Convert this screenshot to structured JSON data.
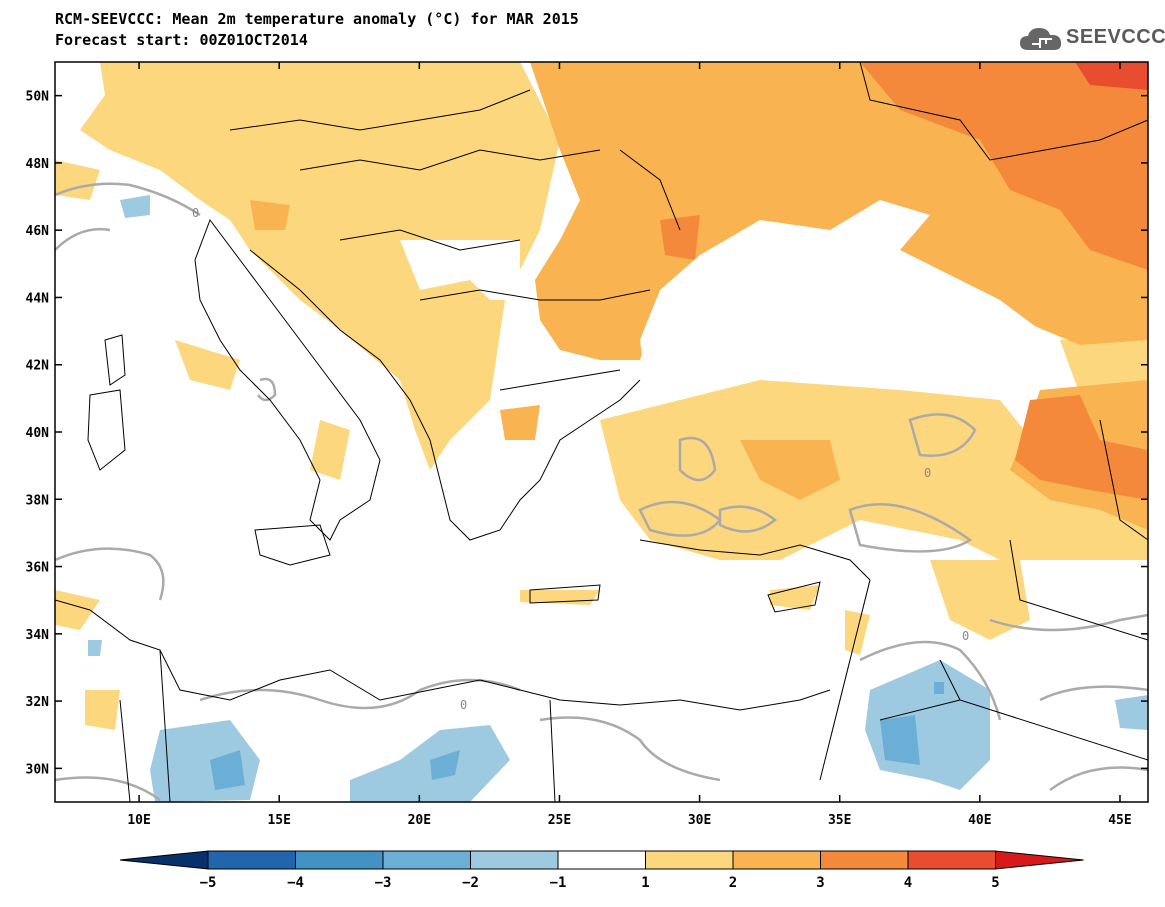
{
  "header": {
    "title_line1": "RCM-SEEVCCC: Mean 2m temperature anomaly (°C) for MAR 2015",
    "title_line2": "Forecast start: 00Z01OCT2014"
  },
  "logo": {
    "text": "SEEVCCC",
    "icon": "cloud-icon"
  },
  "map": {
    "lon_range": [
      7,
      46
    ],
    "lat_range": [
      29,
      51
    ],
    "lon_ticks": [
      10,
      15,
      20,
      25,
      30,
      35,
      40,
      45
    ],
    "lon_tick_labels": [
      "10E",
      "15E",
      "20E",
      "25E",
      "30E",
      "35E",
      "40E",
      "45E"
    ],
    "lat_ticks": [
      30,
      32,
      34,
      36,
      38,
      40,
      42,
      44,
      46,
      48,
      50
    ],
    "lat_tick_labels": [
      "30N",
      "32N",
      "34N",
      "36N",
      "38N",
      "40N",
      "42N",
      "44N",
      "46N",
      "48N",
      "50N"
    ],
    "zero_contour_label": "0",
    "colors": {
      "warm_1_2": "#fdd77e",
      "warm_2_3": "#f9b451",
      "warm_3_4": "#f4893c",
      "warm_4_5": "#e94d2f",
      "warm_gt5": "#d7191c",
      "cold_1_2": "#9ecae1",
      "cold_2_3": "#6baed6",
      "cold_3_4": "#4292c6",
      "cold_4_5": "#2166ac",
      "cold_lt5": "#08519c",
      "neutral": "#ffffff",
      "contour": "#aaaaaa"
    }
  },
  "colorbar": {
    "boundaries": [
      -5,
      -4,
      -3,
      -2,
      -1,
      1,
      2,
      3,
      4,
      5
    ],
    "labels": [
      "−5",
      "−4",
      "−3",
      "−2",
      "−1",
      "1",
      "2",
      "3",
      "4",
      "5"
    ],
    "colors": [
      "#2166ac",
      "#4292c6",
      "#6baed6",
      "#9ecae1",
      "#ffffff",
      "#fdd77e",
      "#f9b451",
      "#f4893c",
      "#e94d2f"
    ],
    "low_extend_color": "#08306b",
    "high_extend_color": "#d7191c"
  }
}
